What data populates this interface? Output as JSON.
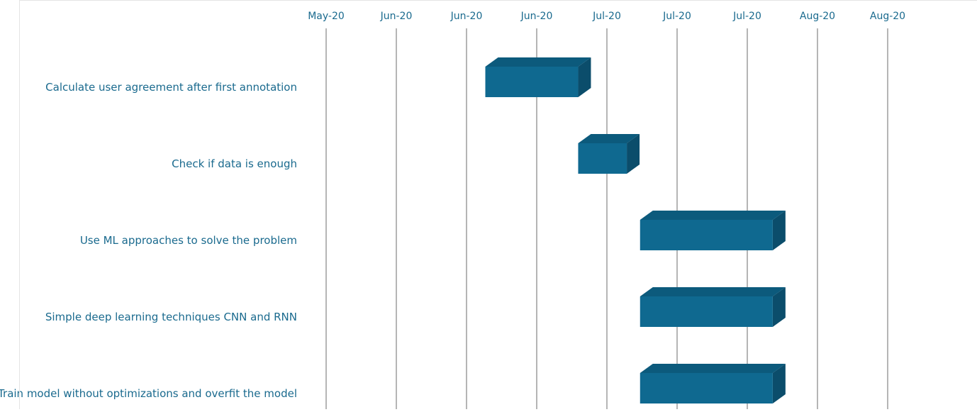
{
  "chart_data": {
    "type": "bar",
    "subtype": "gantt-3d",
    "x_ticks": [
      "May-20",
      "Jun-20",
      "Jun-20",
      "Jun-20",
      "Jul-20",
      "Jul-20",
      "Jul-20",
      "Aug-20",
      "Aug-20"
    ],
    "tasks": [
      {
        "label": "Calculate user agreement after first annotation",
        "start": "2020-06-14",
        "end": "2020-07-05"
      },
      {
        "label": "Check if data is enough",
        "start": "2020-07-05",
        "end": "2020-07-16"
      },
      {
        "label": "Use ML approaches to solve the problem",
        "start": "2020-07-19",
        "end": "2020-08-18"
      },
      {
        "label": "Simple deep learning techniques CNN and RNN ",
        "start": "2020-07-19",
        "end": "2020-08-18"
      },
      {
        "label": "Train model without optimizations and overfit the model",
        "start": "2020-07-19",
        "end": "2020-08-18"
      }
    ],
    "xlim": [
      "2020-05-09",
      "2020-09-13"
    ],
    "grid": true,
    "colors": {
      "bar_front": "#0f6990",
      "bar_top": "#0c5a7c",
      "bar_side": "#0b4d6b",
      "text": "#1a6a8e",
      "grid": "#b5b5b5"
    }
  }
}
